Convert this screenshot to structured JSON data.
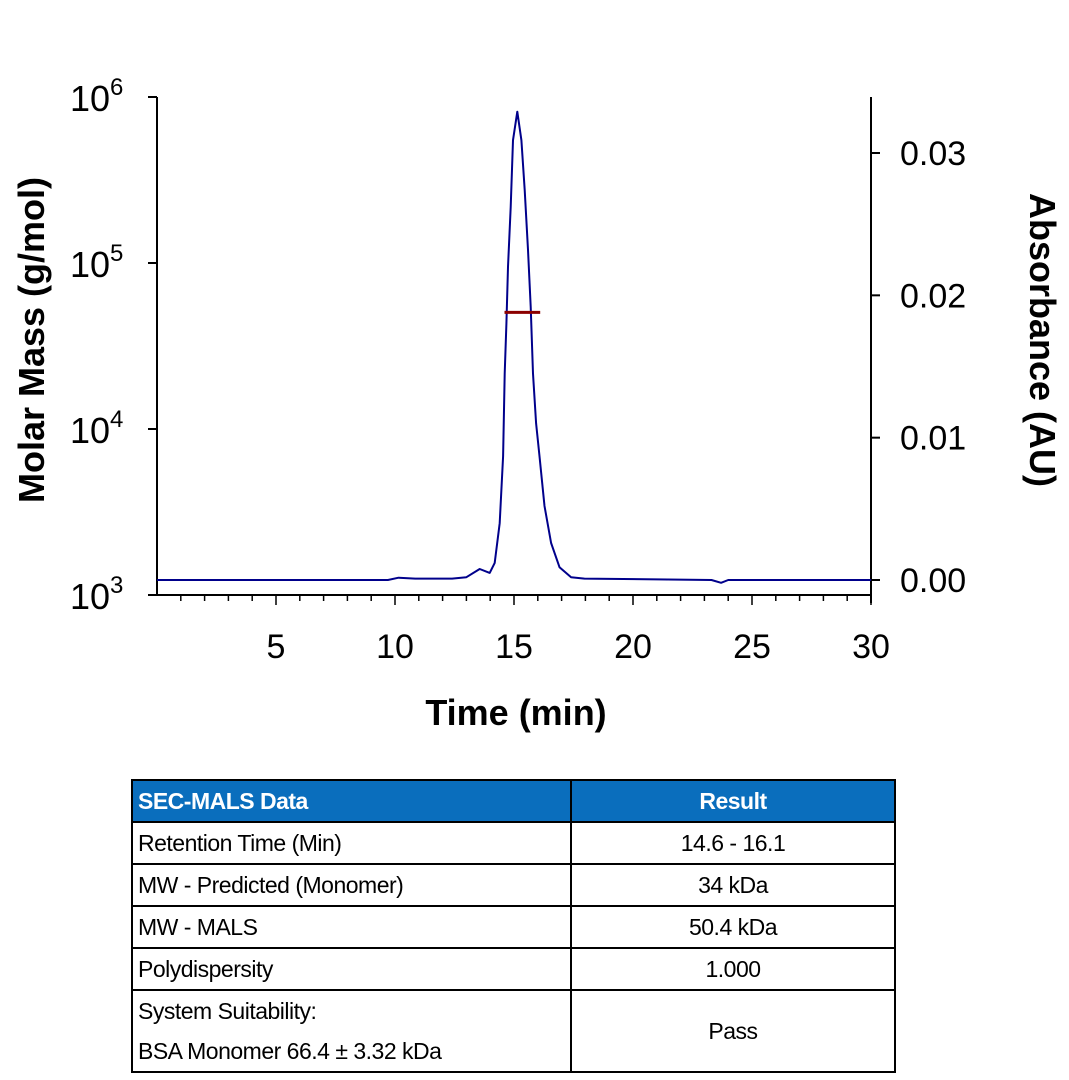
{
  "chart_data": {
    "type": "line",
    "title": "",
    "xlabel": "Time (min)",
    "ylabel_left": "Molar Mass (g/mol)",
    "ylabel_right": "Absorbance (AU)",
    "xlim": [
      0,
      30
    ],
    "xticks": [
      5,
      10,
      15,
      20,
      25,
      30
    ],
    "ylim_left": [
      1000,
      1000000
    ],
    "yscale_left": "log",
    "yticks_left": [
      {
        "base": "10",
        "exp": "3"
      },
      {
        "base": "10",
        "exp": "4"
      },
      {
        "base": "10",
        "exp": "5"
      },
      {
        "base": "10",
        "exp": "6"
      }
    ],
    "ylim_right": [
      0,
      0.034
    ],
    "yticks_right": [
      "0.00",
      "0.01",
      "0.02",
      "0.03"
    ],
    "grid": false,
    "series": [
      {
        "axis": "right",
        "color": "#00008b",
        "x": [
          0,
          9.7,
          10.15,
          10.85,
          12.4,
          13.0,
          13.56,
          13.98,
          14.19,
          14.4,
          14.54,
          14.61,
          14.68,
          14.75,
          14.86,
          14.96,
          15.14,
          15.31,
          15.45,
          15.59,
          15.7,
          15.8,
          15.93,
          16.07,
          16.28,
          16.56,
          16.91,
          17.4,
          17.96,
          23.3,
          23.7,
          24.0,
          30
        ],
        "y": [
          0,
          0,
          0.00016,
          0.0001,
          0.0001,
          0.0002,
          0.00077,
          0.0005,
          0.0012,
          0.004,
          0.0087,
          0.0145,
          0.018,
          0.022,
          0.0262,
          0.0309,
          0.0329,
          0.0309,
          0.0274,
          0.0232,
          0.0192,
          0.0145,
          0.011,
          0.0087,
          0.0052,
          0.0026,
          0.0009,
          0.0002,
          0.0001,
          0,
          -0.0002,
          0,
          0
        ]
      },
      {
        "axis": "left",
        "color": "#8b0000",
        "x": [
          14.6,
          16.1
        ],
        "y": [
          50400,
          50400
        ]
      }
    ]
  },
  "table": {
    "headers": [
      "SEC-MALS Data",
      "Result"
    ],
    "header_color": "#0a6ebd",
    "rows": [
      {
        "label": "Retention Time (Min)",
        "value": "14.6 - 16.1"
      },
      {
        "label": "MW - Predicted (Monomer)",
        "value": "34 kDa"
      },
      {
        "label": "MW - MALS",
        "value": "50.4 kDa"
      },
      {
        "label": "Polydispersity",
        "value": "1.000"
      }
    ],
    "last_row": {
      "label_line1": "System Suitability:",
      "label_line2": "BSA Monomer 66.4 ± 3.32 kDa",
      "value": "Pass"
    }
  }
}
